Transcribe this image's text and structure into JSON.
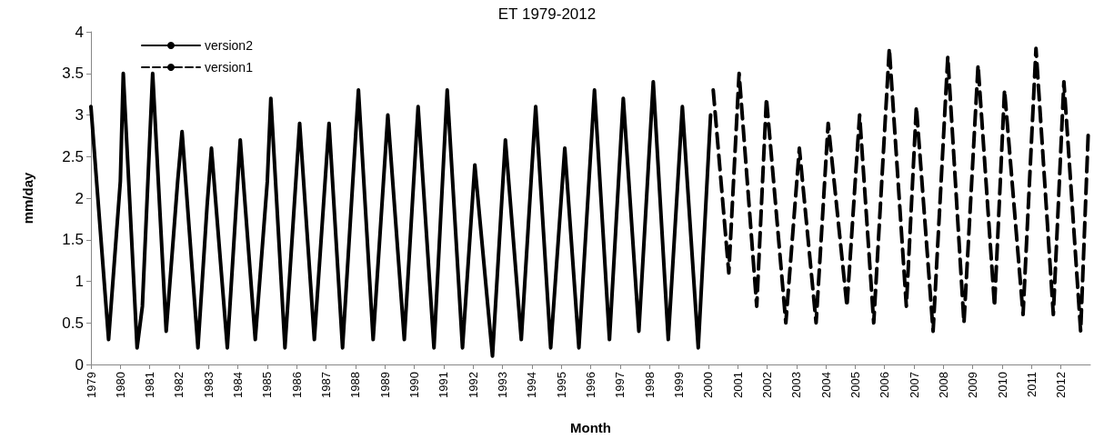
{
  "chart_data": {
    "type": "line",
    "title": "ET 1979-2012",
    "xlabel": "Month",
    "ylabel": "mm/day",
    "xlim": [
      1979,
      2013
    ],
    "xticks": [
      1979,
      1980,
      1981,
      1982,
      1983,
      1984,
      1985,
      1986,
      1987,
      1988,
      1989,
      1990,
      1991,
      1992,
      1993,
      1994,
      1995,
      1996,
      1997,
      1998,
      1999,
      2000,
      2001,
      2002,
      2003,
      2004,
      2005,
      2006,
      2007,
      2008,
      2009,
      2010,
      2011,
      2012
    ],
    "ylim": [
      0,
      4
    ],
    "yticks": [
      0,
      0.5,
      1,
      1.5,
      2,
      2.5,
      3,
      3.5,
      4
    ],
    "grid": false,
    "legend": "top left",
    "marker": "none",
    "series": [
      {
        "name": "version2",
        "color": "#000000",
        "line_style": "solid",
        "x": [
          1979.0,
          1979.6,
          1980.0,
          1980.1,
          1980.57,
          1980.75,
          1981.1,
          1981.56,
          1981.95,
          1982.1,
          1982.64,
          1982.95,
          1983.1,
          1983.64,
          1984.08,
          1984.59,
          1985.0,
          1985.12,
          1985.6,
          1986.1,
          1986.6,
          1987.1,
          1987.56,
          1988.1,
          1988.6,
          1989.1,
          1989.66,
          1990.13,
          1990.67,
          1991.12,
          1991.64,
          1992.06,
          1992.66,
          1993.1,
          1993.64,
          1994.13,
          1994.64,
          1995.12,
          1995.6,
          1996.13,
          1996.64,
          1997.11,
          1997.64,
          1998.13,
          1998.64,
          1999.12,
          1999.66,
          2000.08
        ],
        "values": [
          3.1,
          0.3,
          2.2,
          3.5,
          0.2,
          0.7,
          3.5,
          0.4,
          2.2,
          2.8,
          0.2,
          1.9,
          2.6,
          0.2,
          2.7,
          0.3,
          2.2,
          3.2,
          0.2,
          2.9,
          0.3,
          2.9,
          0.2,
          3.3,
          0.3,
          3.0,
          0.3,
          3.1,
          0.2,
          3.3,
          0.2,
          2.4,
          0.1,
          2.7,
          0.3,
          3.1,
          0.2,
          2.6,
          0.2,
          3.3,
          0.3,
          3.2,
          0.4,
          3.4,
          0.3,
          3.1,
          0.2,
          3.0
        ]
      },
      {
        "name": "version1",
        "color": "#000000",
        "line_style": "dashed",
        "x": [
          2000.17,
          2000.7,
          2001.05,
          2001.65,
          2001.98,
          2002.64,
          2003.1,
          2003.67,
          2004.08,
          2004.72,
          2005.15,
          2005.63,
          2006.16,
          2006.74,
          2007.08,
          2007.65,
          2008.15,
          2008.7,
          2009.18,
          2009.74,
          2010.08,
          2010.71,
          2011.15,
          2011.74,
          2012.1,
          2012.67,
          2012.93
        ],
        "values": [
          3.3,
          1.1,
          3.5,
          0.7,
          3.2,
          0.5,
          2.6,
          0.5,
          2.9,
          0.7,
          3.0,
          0.5,
          3.8,
          0.7,
          3.1,
          0.4,
          3.7,
          0.5,
          3.6,
          0.7,
          3.3,
          0.6,
          3.8,
          0.6,
          3.4,
          0.4,
          2.8
        ]
      }
    ]
  }
}
